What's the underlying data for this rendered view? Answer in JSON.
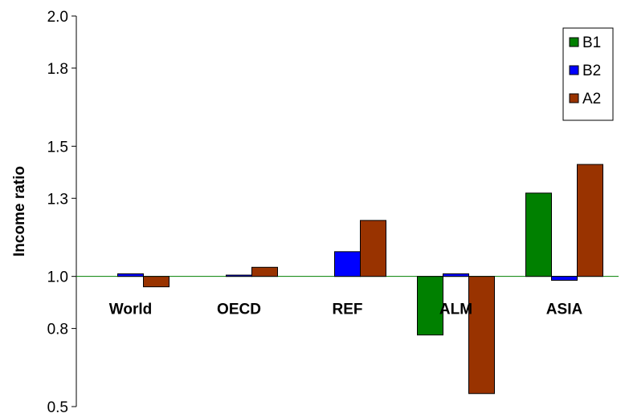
{
  "chart_data": {
    "type": "bar",
    "title": "",
    "xlabel": "",
    "ylabel": "Income ratio",
    "ylim": [
      0.5,
      2.0
    ],
    "yticks": [
      0.5,
      0.8,
      1.0,
      1.3,
      1.5,
      1.8,
      2.0
    ],
    "baseline": 1.0,
    "grid": false,
    "legend_position": "top-right",
    "categories": [
      "World",
      "OECD",
      "REF",
      "ALM",
      "ASIA"
    ],
    "series": [
      {
        "name": "B1",
        "color": "#008000",
        "values": [
          1.0,
          1.0,
          1.0,
          0.775,
          1.32
        ]
      },
      {
        "name": "B2",
        "color": "#0000ff",
        "values": [
          1.01,
          1.005,
          1.095,
          1.01,
          0.985
        ]
      },
      {
        "name": "A2",
        "color": "#993300",
        "values": [
          0.96,
          1.035,
          1.215,
          0.55,
          1.43
        ]
      }
    ]
  }
}
